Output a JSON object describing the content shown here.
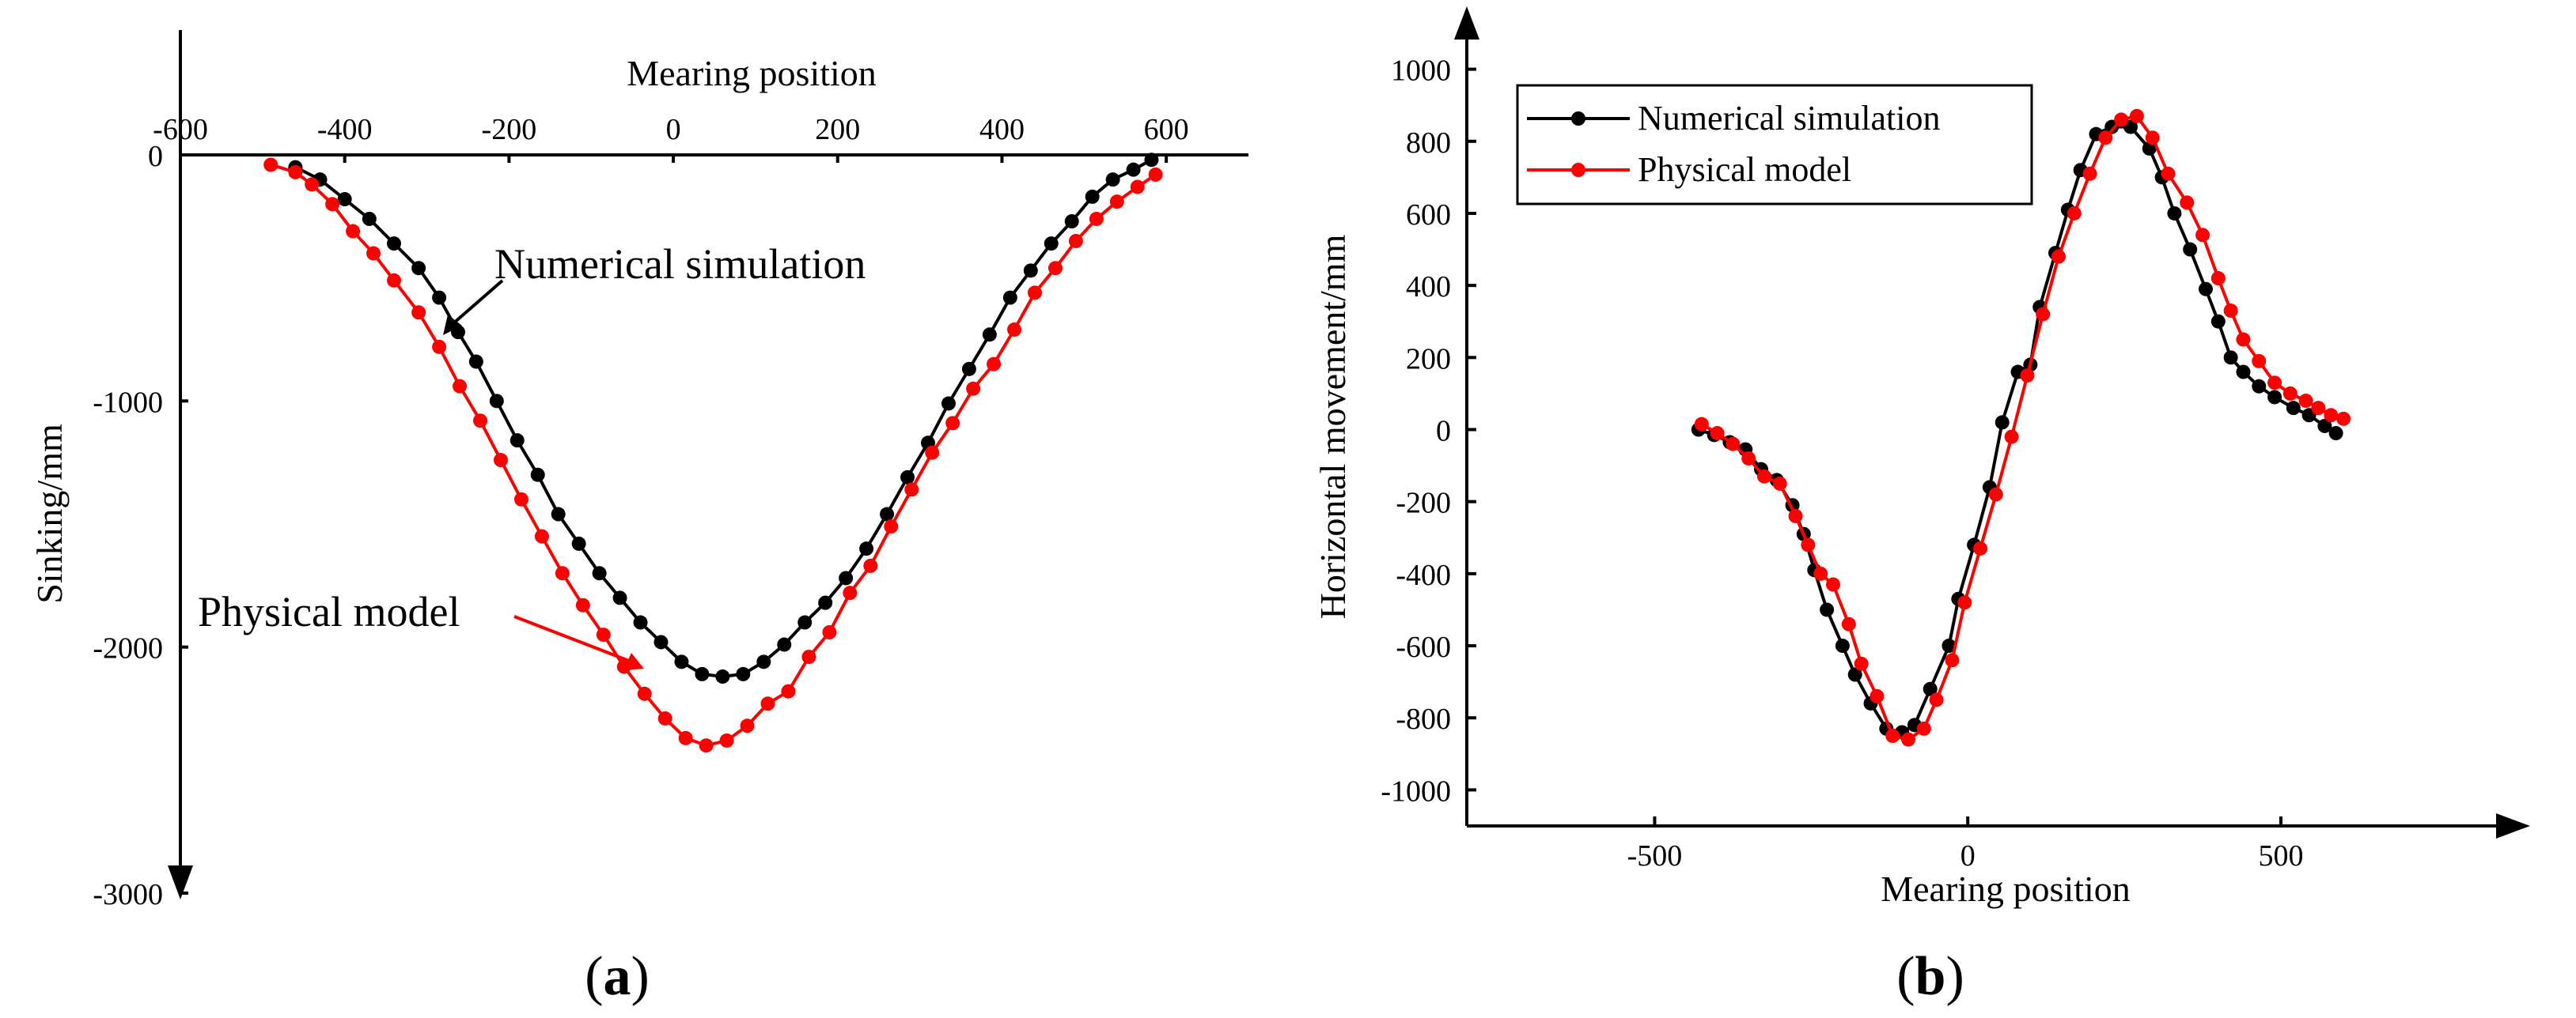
{
  "chart_data": [
    {
      "type": "line",
      "panel_label": "a",
      "xlabel": "Mearing position",
      "ylabel": "Sinking/mm",
      "xlim": [
        -600,
        700
      ],
      "ylim": [
        -3000,
        0
      ],
      "x_ticks": [
        -600,
        -400,
        -200,
        0,
        200,
        400,
        600
      ],
      "y_ticks": [
        0,
        -1000,
        -2000,
        -3000
      ],
      "annotations": [
        "Numerical simulation",
        "Physical model"
      ],
      "series": [
        {
          "name": "Numerical simulation",
          "color": "#000000",
          "points": [
            [
              -460,
              -50
            ],
            [
              -430,
              -100
            ],
            [
              -400,
              -180
            ],
            [
              -370,
              -260
            ],
            [
              -340,
              -360
            ],
            [
              -310,
              -460
            ],
            [
              -285,
              -580
            ],
            [
              -262,
              -720
            ],
            [
              -240,
              -840
            ],
            [
              -215,
              -1000
            ],
            [
              -190,
              -1160
            ],
            [
              -165,
              -1300
            ],
            [
              -140,
              -1460
            ],
            [
              -115,
              -1580
            ],
            [
              -90,
              -1700
            ],
            [
              -65,
              -1800
            ],
            [
              -40,
              -1900
            ],
            [
              -15,
              -1980
            ],
            [
              10,
              -2060
            ],
            [
              35,
              -2110
            ],
            [
              60,
              -2120
            ],
            [
              85,
              -2110
            ],
            [
              110,
              -2060
            ],
            [
              135,
              -1990
            ],
            [
              160,
              -1900
            ],
            [
              185,
              -1820
            ],
            [
              210,
              -1720
            ],
            [
              235,
              -1600
            ],
            [
              260,
              -1460
            ],
            [
              285,
              -1310
            ],
            [
              310,
              -1170
            ],
            [
              335,
              -1010
            ],
            [
              360,
              -870
            ],
            [
              385,
              -730
            ],
            [
              410,
              -580
            ],
            [
              435,
              -470
            ],
            [
              460,
              -360
            ],
            [
              485,
              -270
            ],
            [
              510,
              -170
            ],
            [
              535,
              -100
            ],
            [
              560,
              -60
            ],
            [
              582,
              -20
            ]
          ]
        },
        {
          "name": "Physical model",
          "color": "#ff0000",
          "points": [
            [
              -490,
              -40
            ],
            [
              -460,
              -70
            ],
            [
              -440,
              -120
            ],
            [
              -415,
              -200
            ],
            [
              -390,
              -310
            ],
            [
              -365,
              -400
            ],
            [
              -340,
              -510
            ],
            [
              -310,
              -640
            ],
            [
              -285,
              -780
            ],
            [
              -260,
              -940
            ],
            [
              -235,
              -1080
            ],
            [
              -210,
              -1240
            ],
            [
              -185,
              -1400
            ],
            [
              -160,
              -1550
            ],
            [
              -135,
              -1700
            ],
            [
              -110,
              -1830
            ],
            [
              -85,
              -1950
            ],
            [
              -60,
              -2080
            ],
            [
              -35,
              -2190
            ],
            [
              -10,
              -2290
            ],
            [
              15,
              -2370
            ],
            [
              40,
              -2400
            ],
            [
              65,
              -2380
            ],
            [
              90,
              -2320
            ],
            [
              115,
              -2230
            ],
            [
              140,
              -2180
            ],
            [
              165,
              -2040
            ],
            [
              190,
              -1940
            ],
            [
              215,
              -1780
            ],
            [
              240,
              -1670
            ],
            [
              265,
              -1510
            ],
            [
              290,
              -1360
            ],
            [
              315,
              -1210
            ],
            [
              340,
              -1090
            ],
            [
              365,
              -950
            ],
            [
              390,
              -850
            ],
            [
              415,
              -710
            ],
            [
              440,
              -560
            ],
            [
              465,
              -460
            ],
            [
              490,
              -350
            ],
            [
              515,
              -260
            ],
            [
              540,
              -190
            ],
            [
              565,
              -130
            ],
            [
              587,
              -80
            ]
          ]
        }
      ]
    },
    {
      "type": "line",
      "panel_label": "b",
      "xlabel": "Mearing position",
      "ylabel": "Horizontal movement/mm",
      "xlim": [
        -800,
        850
      ],
      "ylim": [
        -1100,
        1100
      ],
      "x_ticks": [
        -500,
        0,
        500
      ],
      "y_ticks": [
        1000,
        800,
        600,
        400,
        200,
        0,
        -200,
        -400,
        -600,
        -800,
        -1000
      ],
      "legend": {
        "position": "top-left",
        "entries": [
          "Numerical simulation",
          "Physical model"
        ]
      },
      "series": [
        {
          "name": "Numerical simulation",
          "color": "#000000",
          "points": [
            [
              -430,
              0
            ],
            [
              -405,
              -15
            ],
            [
              -380,
              -35
            ],
            [
              -355,
              -55
            ],
            [
              -330,
              -110
            ],
            [
              -305,
              -140
            ],
            [
              -280,
              -210
            ],
            [
              -262,
              -290
            ],
            [
              -245,
              -390
            ],
            [
              -225,
              -500
            ],
            [
              -200,
              -600
            ],
            [
              -180,
              -680
            ],
            [
              -155,
              -760
            ],
            [
              -130,
              -830
            ],
            [
              -105,
              -840
            ],
            [
              -85,
              -820
            ],
            [
              -60,
              -720
            ],
            [
              -30,
              -600
            ],
            [
              -15,
              -470
            ],
            [
              10,
              -320
            ],
            [
              35,
              -160
            ],
            [
              55,
              20
            ],
            [
              80,
              160
            ],
            [
              100,
              180
            ],
            [
              115,
              340
            ],
            [
              140,
              490
            ],
            [
              160,
              610
            ],
            [
              180,
              720
            ],
            [
              205,
              820
            ],
            [
              230,
              840
            ],
            [
              260,
              840
            ],
            [
              290,
              780
            ],
            [
              310,
              700
            ],
            [
              330,
              600
            ],
            [
              355,
              500
            ],
            [
              380,
              390
            ],
            [
              400,
              300
            ],
            [
              420,
              200
            ],
            [
              440,
              160
            ],
            [
              465,
              120
            ],
            [
              490,
              90
            ],
            [
              520,
              60
            ],
            [
              545,
              40
            ],
            [
              570,
              10
            ],
            [
              588,
              -10
            ]
          ]
        },
        {
          "name": "Physical model",
          "color": "#ff0000",
          "points": [
            [
              -425,
              15
            ],
            [
              -400,
              -10
            ],
            [
              -375,
              -40
            ],
            [
              -350,
              -80
            ],
            [
              -325,
              -130
            ],
            [
              -300,
              -150
            ],
            [
              -275,
              -240
            ],
            [
              -255,
              -320
            ],
            [
              -235,
              -400
            ],
            [
              -215,
              -430
            ],
            [
              -190,
              -540
            ],
            [
              -170,
              -650
            ],
            [
              -145,
              -740
            ],
            [
              -120,
              -850
            ],
            [
              -95,
              -860
            ],
            [
              -70,
              -830
            ],
            [
              -50,
              -750
            ],
            [
              -25,
              -640
            ],
            [
              -5,
              -480
            ],
            [
              20,
              -330
            ],
            [
              45,
              -180
            ],
            [
              70,
              -20
            ],
            [
              95,
              150
            ],
            [
              120,
              320
            ],
            [
              145,
              480
            ],
            [
              170,
              600
            ],
            [
              195,
              710
            ],
            [
              220,
              810
            ],
            [
              245,
              860
            ],
            [
              270,
              870
            ],
            [
              295,
              810
            ],
            [
              320,
              710
            ],
            [
              350,
              630
            ],
            [
              375,
              540
            ],
            [
              400,
              420
            ],
            [
              420,
              330
            ],
            [
              440,
              250
            ],
            [
              465,
              190
            ],
            [
              490,
              130
            ],
            [
              515,
              100
            ],
            [
              540,
              80
            ],
            [
              560,
              60
            ],
            [
              580,
              40
            ],
            [
              600,
              30
            ]
          ]
        }
      ]
    }
  ]
}
